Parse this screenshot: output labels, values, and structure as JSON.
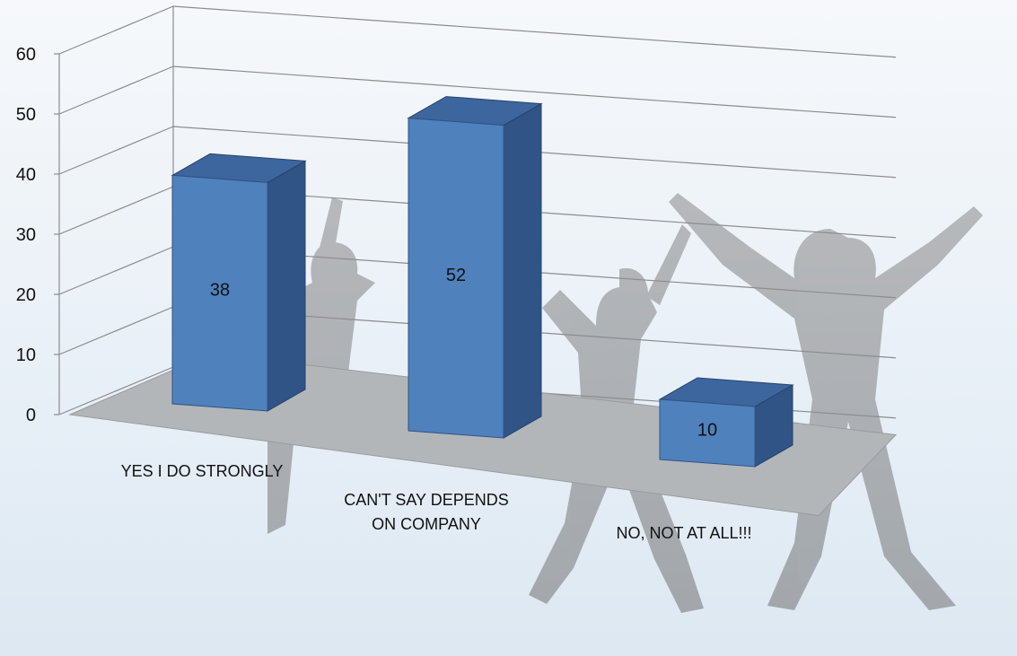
{
  "chart_data": {
    "type": "bar",
    "style": "3d-column",
    "categories": [
      "YES I DO STRONGLY",
      "CAN'T SAY DEPENDS ON COMPANY",
      "NO, NOT AT ALL!!!"
    ],
    "category_label_lines": [
      [
        "YES I DO STRONGLY"
      ],
      [
        "CAN'T SAY DEPENDS",
        "ON COMPANY"
      ],
      [
        "NO, NOT AT ALL!!!"
      ]
    ],
    "values": [
      38,
      52,
      10
    ],
    "data_labels": [
      "38",
      "52",
      "10"
    ],
    "ylim": [
      0,
      60
    ],
    "yticks": [
      "0",
      "10",
      "20",
      "30",
      "40",
      "50",
      "60"
    ],
    "title": "",
    "xlabel": "",
    "ylabel": "",
    "grid": true,
    "legend": "none",
    "colors": {
      "bar_front": "#4f81bd",
      "bar_side": "#2f5485",
      "bar_top": "#3d669e",
      "floor": "#b3b6b8",
      "grid": "#8c8c8c"
    }
  },
  "background": {
    "description_icon": "jumping-people-photo",
    "colors": [
      "#f3f6fa",
      "#dde8f2"
    ]
  }
}
